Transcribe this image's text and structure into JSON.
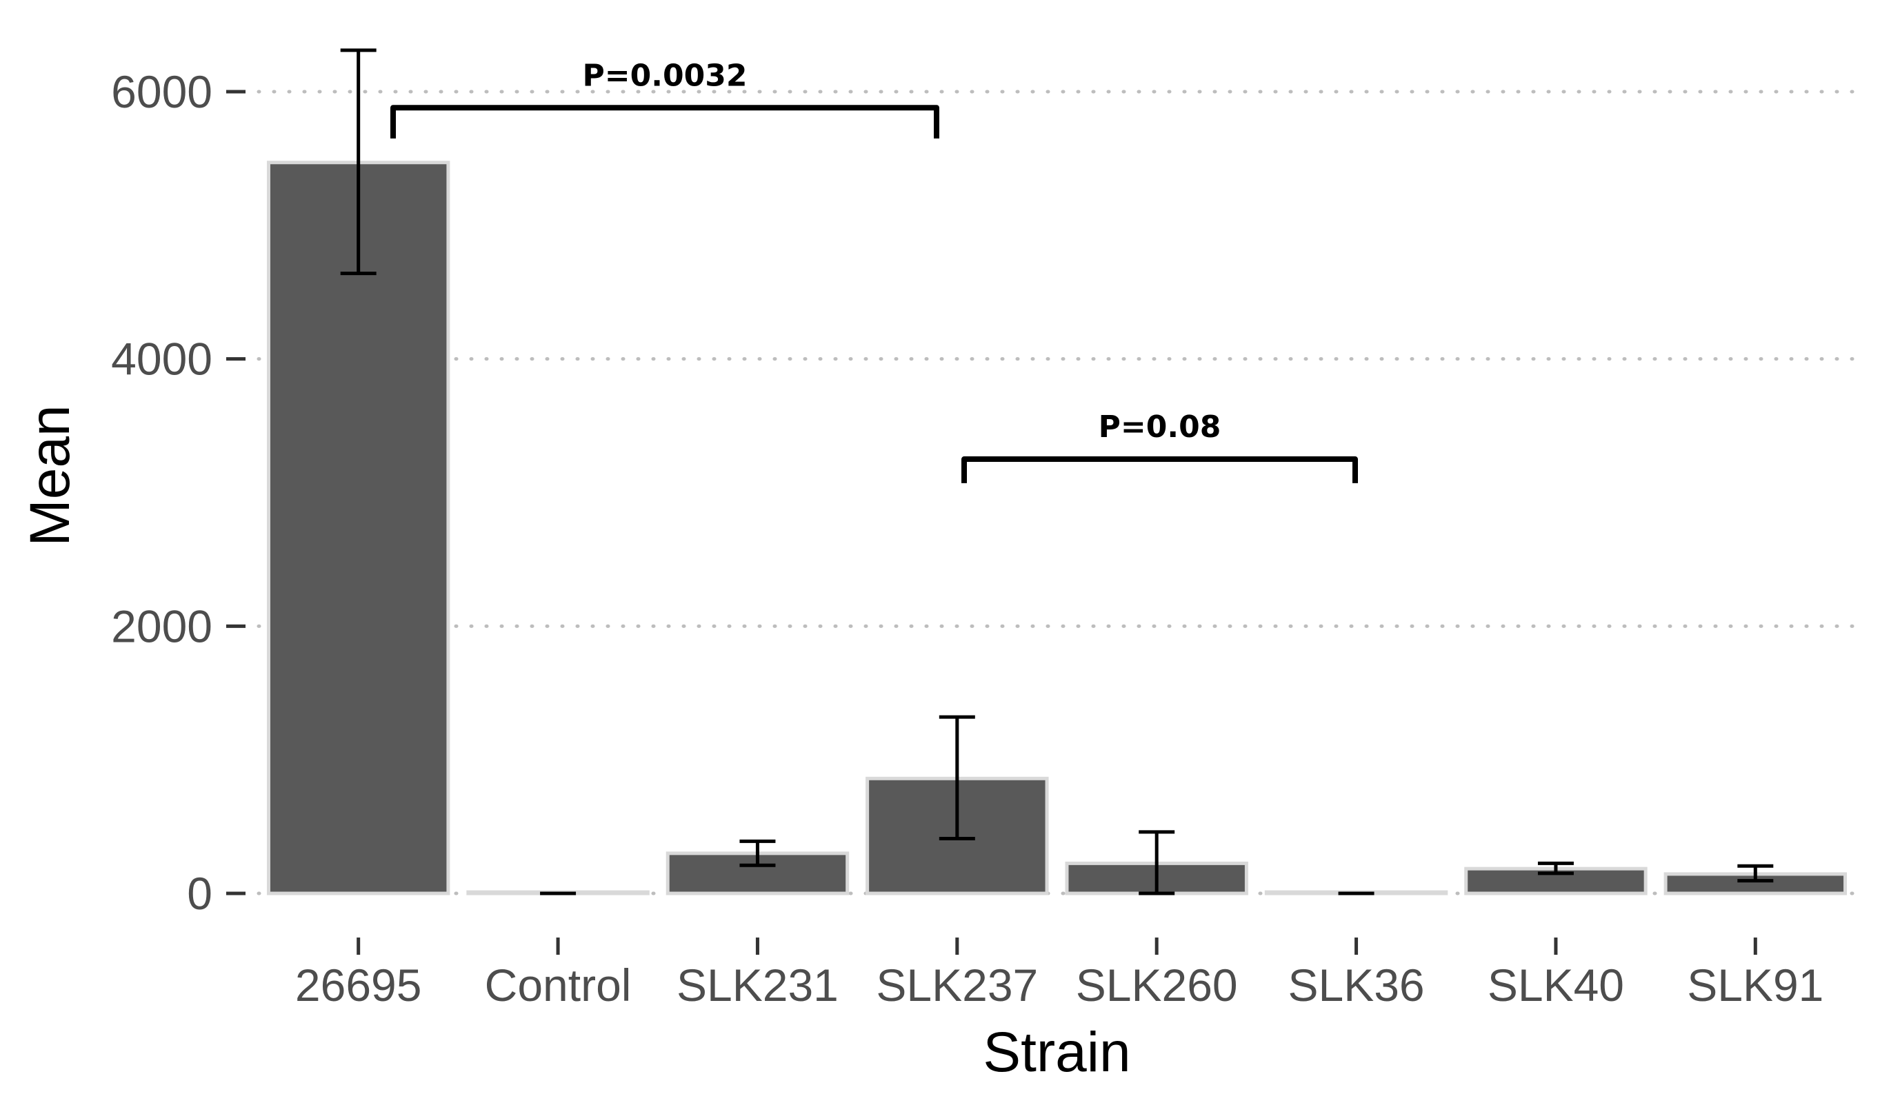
{
  "chart_data": {
    "type": "bar",
    "categories": [
      "26695",
      "Control",
      "SLK231",
      "SLK237",
      "SLK260",
      "SLK36",
      "SLK40",
      "SLK91"
    ],
    "values": [
      5470,
      10,
      300,
      860,
      225,
      10,
      185,
      145
    ],
    "error_low": [
      4640,
      0,
      210,
      410,
      0,
      0,
      150,
      95
    ],
    "error_high": [
      6310,
      0,
      390,
      1320,
      460,
      0,
      225,
      205
    ],
    "xlabel": "Strain",
    "ylabel": "Mean",
    "ylim": [
      -250,
      6400
    ],
    "yticks": [
      0,
      2000,
      4000,
      6000
    ],
    "grid": "horizontal-dotted",
    "bar_color": "#595959",
    "bar_outline_color": "#d9d9d9",
    "annotations": [
      {
        "label": "P=0.0032",
        "from": "26695",
        "to": "SLK237",
        "y": 5880,
        "drop": 230
      },
      {
        "label": "P=0.08",
        "from": "SLK237",
        "to": "SLK36",
        "y": 3250,
        "drop": 180
      }
    ]
  }
}
